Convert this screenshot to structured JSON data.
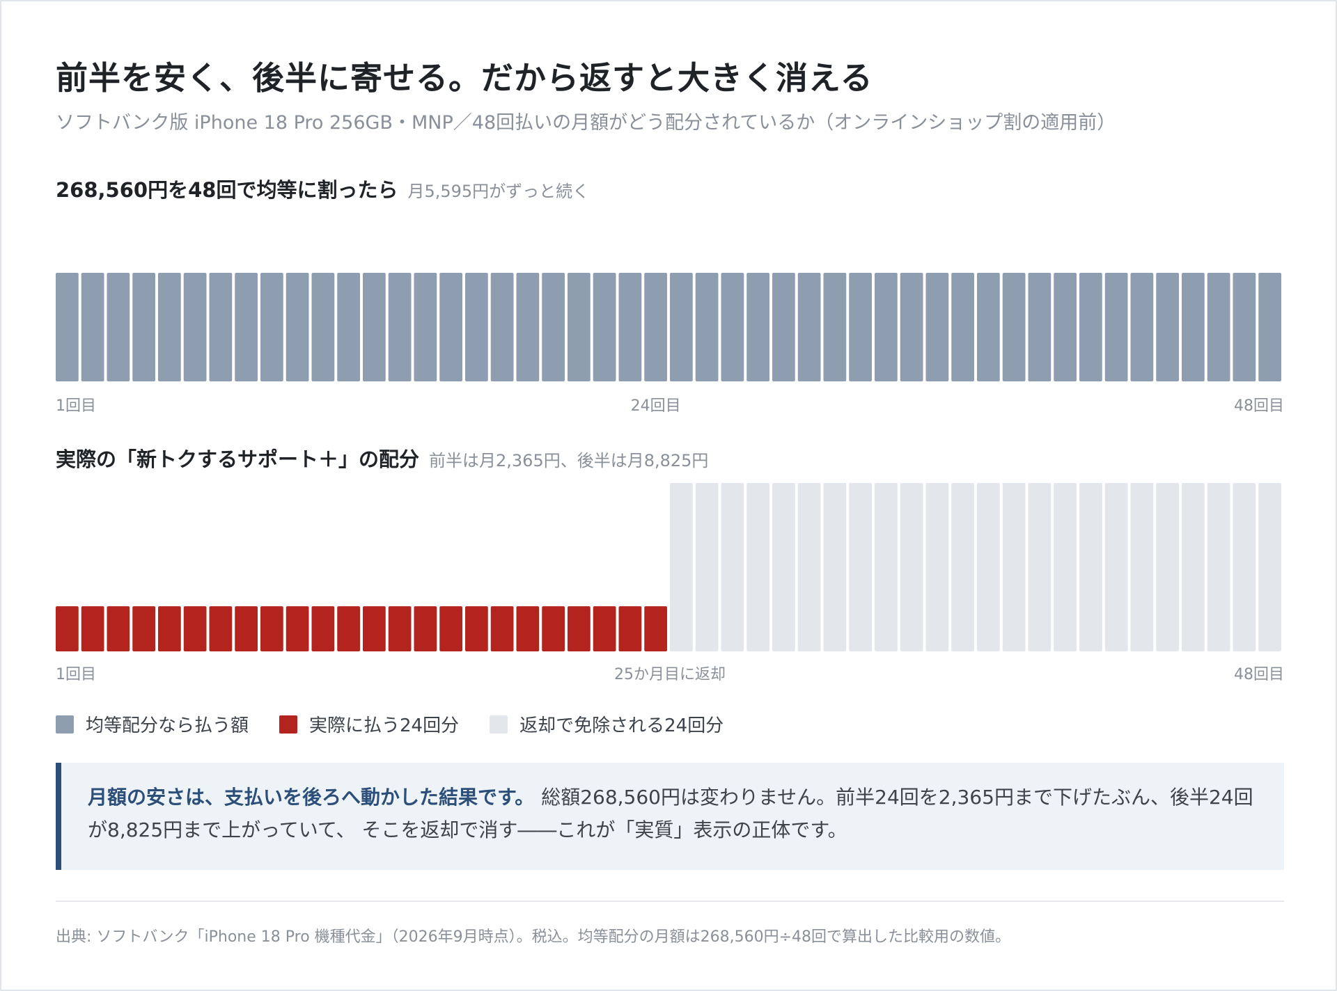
{
  "header": {
    "title": "前半を安く、後半に寄せる。だから返すと大きく消える",
    "subtitle": "ソフトバンク版 iPhone 18 Pro 256GB・MNP／48回払いの月額がどう配分されているか（オンラインショップ割の適用前）"
  },
  "colors": {
    "even": "#8e9eb0",
    "paid": "#b3241e",
    "waived": "#e3e7eb",
    "accent": "#2c4f7a"
  },
  "chart_data": [
    {
      "type": "bar",
      "title": "268,560円を48回で均等に割ったら",
      "subtitle": "月5,595円がずっと続く",
      "x_start_label": "1回目",
      "x_mid_label": "24回目",
      "x_end_label": "48回目",
      "count": 48,
      "series": [
        {
          "name": "均等配分なら払う額",
          "value": 5595,
          "from": 1,
          "to": 48
        }
      ],
      "ylim": [
        0,
        8825
      ]
    },
    {
      "type": "bar",
      "title": "実際の「新トクするサポート＋」の配分",
      "subtitle": "前半は月2,365円、後半は月8,825円",
      "x_start_label": "1回目",
      "x_mid_label": "25か月目に返却",
      "x_end_label": "48回目",
      "count": 48,
      "series": [
        {
          "name": "実際に払う24回分",
          "value": 2365,
          "from": 1,
          "to": 24
        },
        {
          "name": "返却で免除される24回分",
          "value": 8825,
          "from": 25,
          "to": 48
        }
      ],
      "ylim": [
        0,
        8825
      ]
    }
  ],
  "legend": {
    "even": "均等配分なら払う額",
    "paid": "実際に払う24回分",
    "waived": "返却で免除される24回分"
  },
  "callout": {
    "lead": "月額の安さは、支払いを後ろへ動かした結果です。",
    "body": "総額268,560円は変わりません。前半24回を2,365円まで下げたぶん、後半24回が8,825円まで上がっていて、 そこを返却で消す――これが「実質」表示の正体です。"
  },
  "source": "出典: ソフトバンク「iPhone 18 Pro 機種代金」（2026年9月時点）。税込。均等配分の月額は268,560円÷48回で算出した比較用の数値。"
}
